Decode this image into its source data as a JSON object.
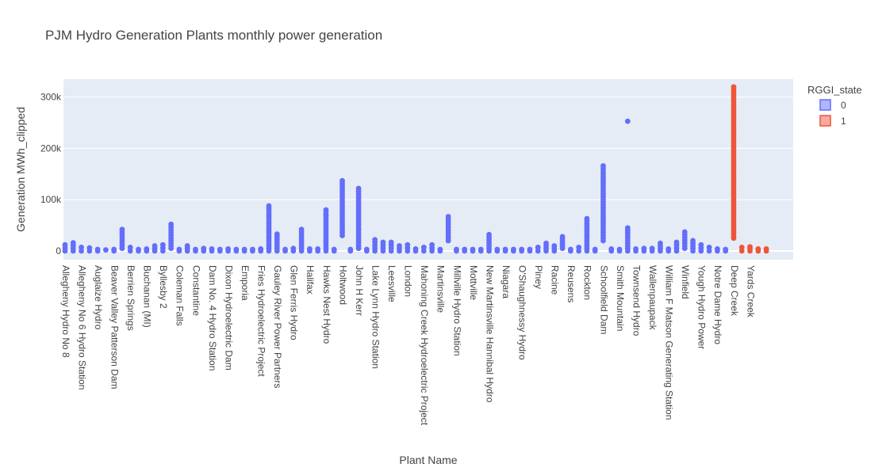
{
  "chart_data": {
    "type": "scatter",
    "title": "PJM Hydro Generation Plants monthly power generation",
    "xlabel": "Plant Name",
    "ylabel": "Generation MWh_clipped",
    "ylim": [
      -17000,
      335000
    ],
    "yticks": [
      0,
      100000,
      200000,
      300000
    ],
    "ytick_labels": [
      "0",
      "100k",
      "200k",
      "300k"
    ],
    "grid": true,
    "legend": {
      "title": "RGGI_state",
      "placement": "top-right",
      "entries": [
        {
          "label": "0",
          "color": "#636efa"
        },
        {
          "label": "1",
          "color": "#ef553b"
        }
      ]
    },
    "x_tick_labels": [
      "Allegheny Hydro No 8",
      "Allegheny No 6 Hydro Station",
      "Auglaize Hydro",
      "Beaver Valley Patterson Dam",
      "Berrien Springs",
      "Buchanan (MI)",
      "Byllesby 2",
      "Coleman Falls",
      "Constantine",
      "Dam No. 4 Hydro Station",
      "Dixon Hydroelectric Dam",
      "Emporia",
      "Fries Hydroelectric Project",
      "Gauley River Power Partners",
      "Glen Ferris Hydro",
      "Halifax",
      "Hawks Nest Hydro",
      "Holtwood",
      "John H Kerr",
      "Lake Lynn Hydro Station",
      "Leesville",
      "London",
      "Mahoning Creek Hydroelectric Project",
      "Martinsville",
      "Millville Hydro Station",
      "Mottville",
      "New Martinsville Hannibal Hydro",
      "Niagara",
      "O'Shaughnessy Hydro",
      "Piney",
      "Racine",
      "Reusens",
      "Rockton",
      "Schoolfield Dam",
      "Smith Mountain",
      "Townsend Hydro",
      "Wallenpaupack",
      "William F Matson Generating Station",
      "Winfield",
      "Yough Hydro Power",
      "Notre Dame Hydro",
      "Deep Creek",
      "Yards Creek"
    ],
    "series": [
      {
        "name": "0",
        "color": "#636efa",
        "points": [
          {
            "plant": 0,
            "min": 0,
            "max": 12000
          },
          {
            "plant": 1,
            "min": 0,
            "max": 16000
          },
          {
            "plant": 2,
            "min": 0,
            "max": 7000
          },
          {
            "plant": 3,
            "min": 0,
            "max": 6000
          },
          {
            "plant": 4,
            "min": 0,
            "max": 3000
          },
          {
            "plant": 5,
            "min": 0,
            "max": 2000
          },
          {
            "plant": 6,
            "min": 0,
            "max": 3000
          },
          {
            "plant": 7,
            "min": 5000,
            "max": 42000
          },
          {
            "plant": 8,
            "min": 0,
            "max": 7000
          },
          {
            "plant": 9,
            "min": 0,
            "max": 3000
          },
          {
            "plant": 10,
            "min": 0,
            "max": 4000
          },
          {
            "plant": 11,
            "min": 0,
            "max": 10000
          },
          {
            "plant": 12,
            "min": 0,
            "max": 12000
          },
          {
            "plant": 13,
            "min": 5000,
            "max": 52000
          },
          {
            "plant": 14,
            "min": 0,
            "max": 3000
          },
          {
            "plant": 15,
            "min": 0,
            "max": 10000
          },
          {
            "plant": 16,
            "min": 0,
            "max": 3000
          },
          {
            "plant": 17,
            "min": 0,
            "max": 5000
          },
          {
            "plant": 18,
            "min": 0,
            "max": 4000
          },
          {
            "plant": 19,
            "min": 0,
            "max": 3000
          },
          {
            "plant": 20,
            "min": 0,
            "max": 4000
          },
          {
            "plant": 21,
            "min": 0,
            "max": 3000
          },
          {
            "plant": 22,
            "min": 0,
            "max": 3000
          },
          {
            "plant": 23,
            "min": 0,
            "max": 3000
          },
          {
            "plant": 24,
            "min": 0,
            "max": 4000
          },
          {
            "plant": 25,
            "min": 0,
            "max": 88000
          },
          {
            "plant": 26,
            "min": 0,
            "max": 33000
          },
          {
            "plant": 27,
            "min": 0,
            "max": 3000
          },
          {
            "plant": 28,
            "min": 0,
            "max": 5000
          },
          {
            "plant": 29,
            "min": 0,
            "max": 42000
          },
          {
            "plant": 30,
            "min": 0,
            "max": 4000
          },
          {
            "plant": 31,
            "min": 0,
            "max": 4000
          },
          {
            "plant": 32,
            "min": 0,
            "max": 80000
          },
          {
            "plant": 33,
            "min": 0,
            "max": 3000
          },
          {
            "plant": 34,
            "min": 30000,
            "max": 137000
          },
          {
            "plant": 35,
            "min": 0,
            "max": 3000
          },
          {
            "plant": 36,
            "min": 5000,
            "max": 122000
          },
          {
            "plant": 37,
            "min": 0,
            "max": 3000
          },
          {
            "plant": 38,
            "min": 0,
            "max": 22000
          },
          {
            "plant": 39,
            "min": 0,
            "max": 17000
          },
          {
            "plant": 40,
            "min": 0,
            "max": 17000
          },
          {
            "plant": 41,
            "min": 0,
            "max": 10000
          },
          {
            "plant": 42,
            "min": 0,
            "max": 12000
          },
          {
            "plant": 43,
            "min": 0,
            "max": 4000
          },
          {
            "plant": 44,
            "min": 0,
            "max": 7000
          },
          {
            "plant": 45,
            "min": 0,
            "max": 12000
          },
          {
            "plant": 46,
            "min": 0,
            "max": 3000
          },
          {
            "plant": 47,
            "min": 20000,
            "max": 67000
          },
          {
            "plant": 48,
            "min": 0,
            "max": 3000
          },
          {
            "plant": 49,
            "min": 0,
            "max": 3000
          },
          {
            "plant": 50,
            "min": 0,
            "max": 3000
          },
          {
            "plant": 51,
            "min": 0,
            "max": 3000
          },
          {
            "plant": 52,
            "min": 0,
            "max": 32000
          },
          {
            "plant": 53,
            "min": 0,
            "max": 3000
          },
          {
            "plant": 54,
            "min": 0,
            "max": 3000
          },
          {
            "plant": 55,
            "min": 0,
            "max": 3000
          },
          {
            "plant": 56,
            "min": 0,
            "max": 3000
          },
          {
            "plant": 57,
            "min": 0,
            "max": 3000
          },
          {
            "plant": 58,
            "min": 0,
            "max": 7000
          },
          {
            "plant": 59,
            "min": 0,
            "max": 15000
          },
          {
            "plant": 60,
            "min": 0,
            "max": 10000
          },
          {
            "plant": 61,
            "min": 5000,
            "max": 28000
          },
          {
            "plant": 62,
            "min": 0,
            "max": 3000
          },
          {
            "plant": 63,
            "min": 0,
            "max": 7000
          },
          {
            "plant": 64,
            "min": 0,
            "max": 63000
          },
          {
            "plant": 65,
            "min": 0,
            "max": 3000
          },
          {
            "plant": 66,
            "min": 20000,
            "max": 166000
          },
          {
            "plant": 67,
            "min": 0,
            "max": 4000
          },
          {
            "plant": 68,
            "min": 0,
            "max": 3000
          },
          {
            "plant": 69,
            "min": 0,
            "max": 45000
          },
          {
            "plant": 69,
            "min": 253000,
            "max": 253000
          },
          {
            "plant": 70,
            "min": 0,
            "max": 4000
          },
          {
            "plant": 71,
            "min": 0,
            "max": 5000
          },
          {
            "plant": 72,
            "min": 0,
            "max": 5000
          },
          {
            "plant": 73,
            "min": 0,
            "max": 15000
          },
          {
            "plant": 74,
            "min": 0,
            "max": 4000
          },
          {
            "plant": 75,
            "min": 0,
            "max": 17000
          },
          {
            "plant": 76,
            "min": 5000,
            "max": 37000
          },
          {
            "plant": 77,
            "min": 0,
            "max": 20000
          },
          {
            "plant": 78,
            "min": 0,
            "max": 12000
          },
          {
            "plant": 79,
            "min": 0,
            "max": 7000
          },
          {
            "plant": 80,
            "min": 0,
            "max": 4000
          },
          {
            "plant": 81,
            "min": 0,
            "max": 3000
          }
        ]
      },
      {
        "name": "1",
        "color": "#ef553b",
        "points": [
          {
            "plant": 82,
            "min": 25000,
            "max": 320000
          },
          {
            "plant": 83,
            "min": 0,
            "max": 7000
          },
          {
            "plant": 84,
            "min": 0,
            "max": 8000
          },
          {
            "plant": 85,
            "min": 0,
            "max": 4000
          },
          {
            "plant": 86,
            "min": 0,
            "max": 4000
          }
        ]
      }
    ]
  }
}
